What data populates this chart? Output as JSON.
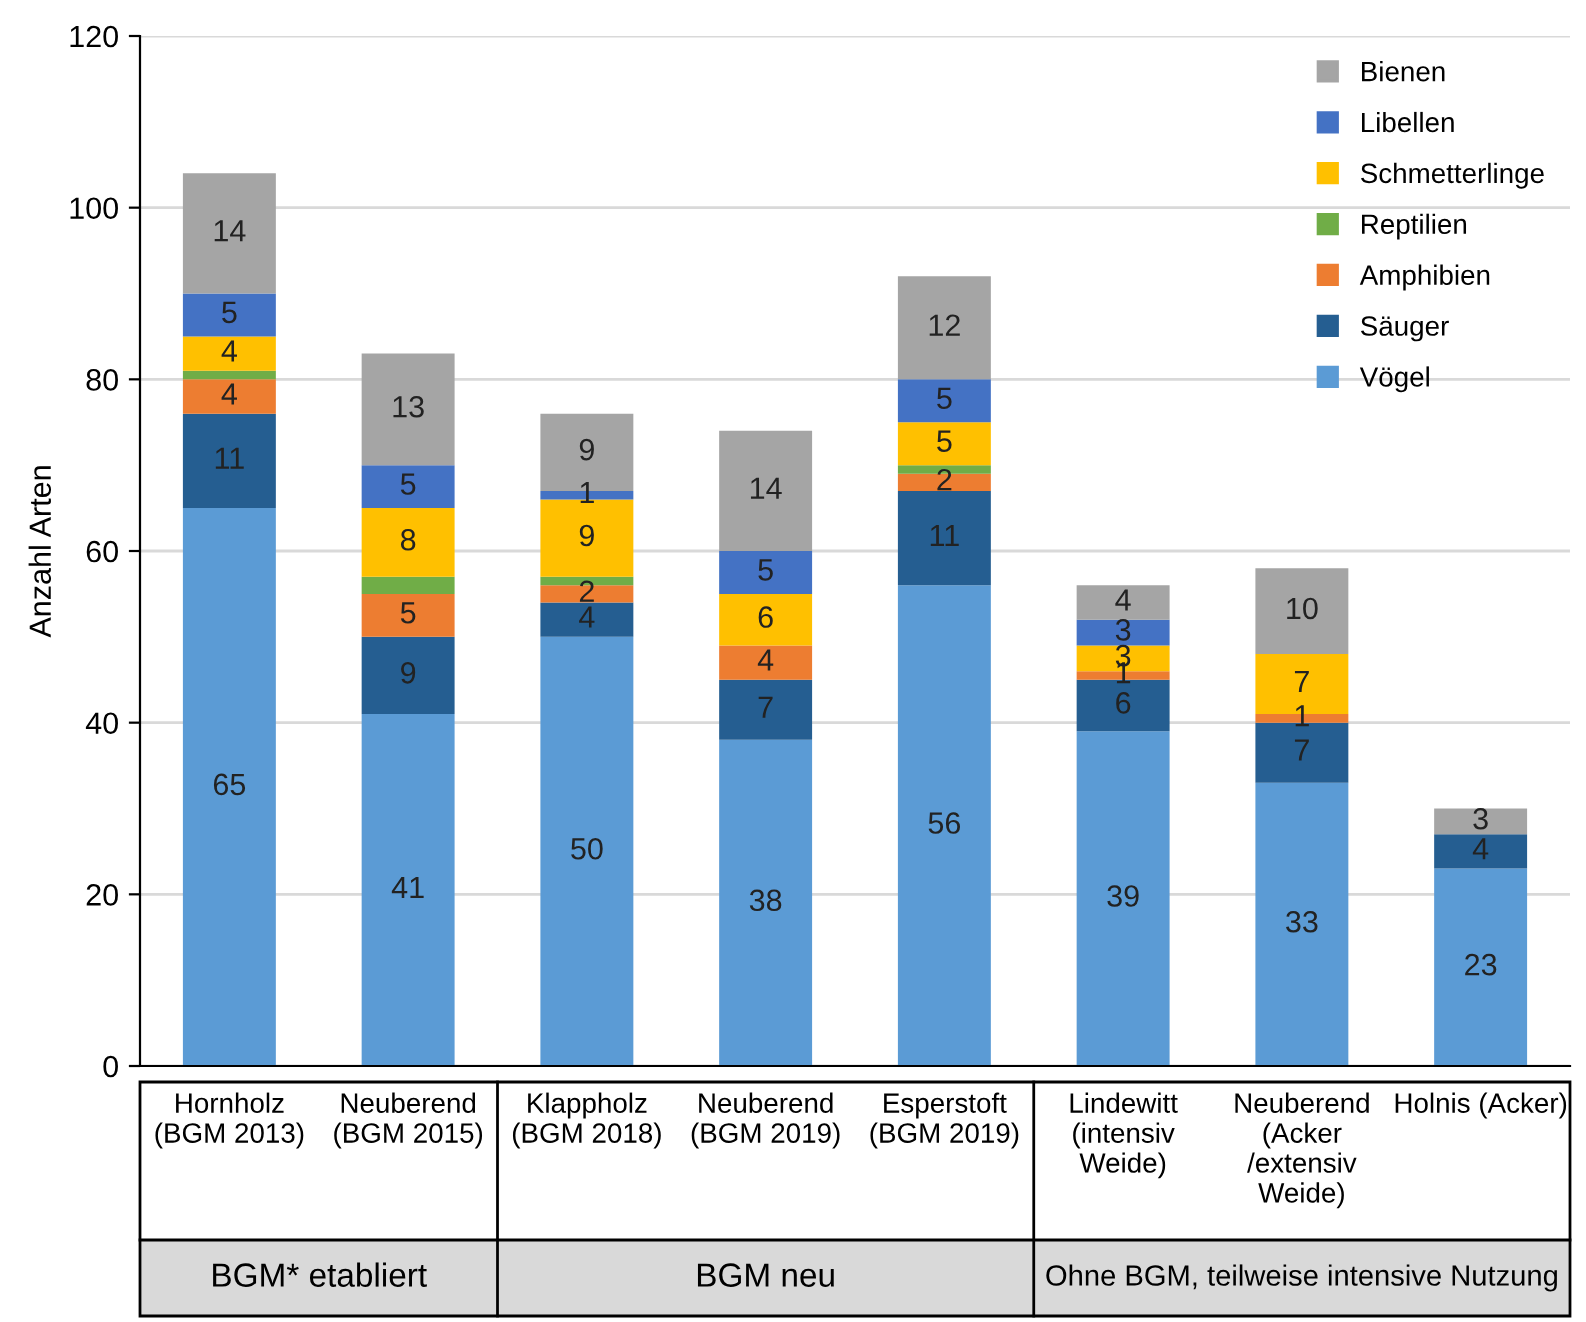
{
  "chart_data": {
    "type": "bar",
    "stacked": true,
    "ylabel": "Anzahl Arten",
    "categories": [
      "Hornholz\n(BGM 2013)",
      "Neuberend\n(BGM 2015)",
      "Klappholz\n(BGM 2018)",
      "Neuberend\n(BGM 2019)",
      "Esperstoft\n(BGM 2019)",
      "Lindewitt\n(intensiv\nWeide)",
      "Neuberend\n(Acker\n/extensiv\nWeide)",
      "Holnis (Acker)"
    ],
    "series": [
      {
        "name": "Vögel",
        "color": "#5b9bd5",
        "values": [
          65,
          41,
          50,
          38,
          56,
          39,
          33,
          23
        ],
        "value_labels": [
          "65",
          "41",
          "50",
          "38",
          "56",
          "39",
          "33",
          "23"
        ]
      },
      {
        "name": "Säuger",
        "color": "#255e91",
        "values": [
          11,
          9,
          4,
          7,
          11,
          6,
          7,
          4
        ],
        "value_labels": [
          "11",
          "9",
          "4",
          "7",
          "11",
          "6",
          "7",
          "4"
        ]
      },
      {
        "name": "Amphibien",
        "color": "#ed7d31",
        "values": [
          4,
          5,
          2,
          4,
          2,
          1,
          1,
          0
        ],
        "value_labels": [
          "4",
          "5",
          "2",
          "4",
          "2",
          "1",
          "1",
          null
        ]
      },
      {
        "name": "Reptilien",
        "color": "#70ad47",
        "values": [
          1,
          2,
          1,
          0,
          1,
          0,
          0,
          0
        ],
        "value_labels": [
          null,
          null,
          null,
          null,
          null,
          null,
          null,
          null
        ]
      },
      {
        "name": "Schmetterlinge",
        "color": "#ffc000",
        "values": [
          4,
          8,
          9,
          6,
          5,
          3,
          7,
          0
        ],
        "value_labels": [
          "4",
          "8",
          "9",
          "6",
          "5",
          "3",
          "7",
          null
        ]
      },
      {
        "name": "Libellen",
        "color": "#4472c4",
        "values": [
          5,
          5,
          1,
          5,
          5,
          3,
          0,
          0
        ],
        "value_labels": [
          "5",
          "5",
          "1",
          "5",
          "5",
          "3",
          null,
          null
        ]
      },
      {
        "name": "Bienen",
        "color": "#a5a5a5",
        "values": [
          14,
          13,
          9,
          14,
          12,
          4,
          10,
          3
        ],
        "value_labels": [
          "14",
          "13",
          "9",
          "14",
          "12",
          "4",
          "10",
          "3"
        ]
      }
    ],
    "ylim": [
      0,
      120
    ],
    "yticks": [
      0,
      20,
      40,
      60,
      80,
      100,
      120
    ],
    "grid": "y",
    "legend": "top right",
    "annotations": [
      "BGM* etabliert",
      "BGM neu",
      "Ohne BGM, teilweise intensive Nutzung"
    ]
  }
}
